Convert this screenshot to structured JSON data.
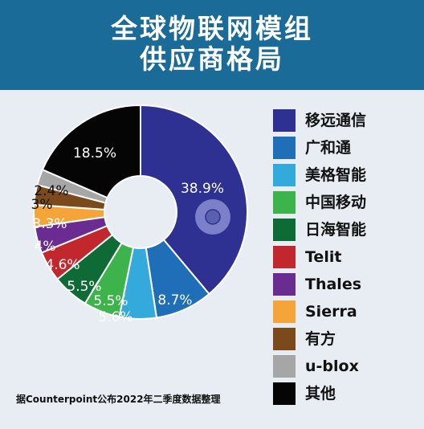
{
  "header": {
    "title_line1": "全球物联网模组",
    "title_line2": "供应商格局"
  },
  "source_note": "据Counterpoint公布2022年二季度数据整理",
  "colors": {
    "header_bg": "#1a6b97",
    "background": "#e8edf3",
    "center_marker": "#7b80c8"
  },
  "chart_data": {
    "type": "pie",
    "style": "donut",
    "legend_placement": "right",
    "slices": [
      {
        "name": "移远通信",
        "value": 38.9,
        "label": "38.9%",
        "color": "#2e3192"
      },
      {
        "name": "广和通",
        "value": 8.7,
        "label": "8.7%",
        "color": "#1f6fb8"
      },
      {
        "name": "美格智能",
        "value": 5.6,
        "label": "5.6%",
        "color": "#34aadc"
      },
      {
        "name": "中国移动",
        "value": 5.5,
        "label": "5.5%",
        "color": "#3cb44b"
      },
      {
        "name": "日海智能",
        "value": 5.5,
        "label": "5.5%",
        "color": "#0f6b35"
      },
      {
        "name": "Telit",
        "value": 4.6,
        "label": "4.6%",
        "color": "#c1272d"
      },
      {
        "name": "Thales",
        "value": 4.0,
        "label": "4%",
        "color": "#6a2c91"
      },
      {
        "name": "Sierra",
        "value": 3.3,
        "label": "3.3%",
        "color": "#f5a43a"
      },
      {
        "name": "有方",
        "value": 3.0,
        "label": "3%",
        "color": "#7a4a1c"
      },
      {
        "name": "u-blox",
        "value": 2.4,
        "label": "2.4%",
        "color": "#a6a6a6"
      },
      {
        "name": "其他",
        "value": 18.5,
        "label": "18.5%",
        "color": "#050505"
      }
    ]
  }
}
